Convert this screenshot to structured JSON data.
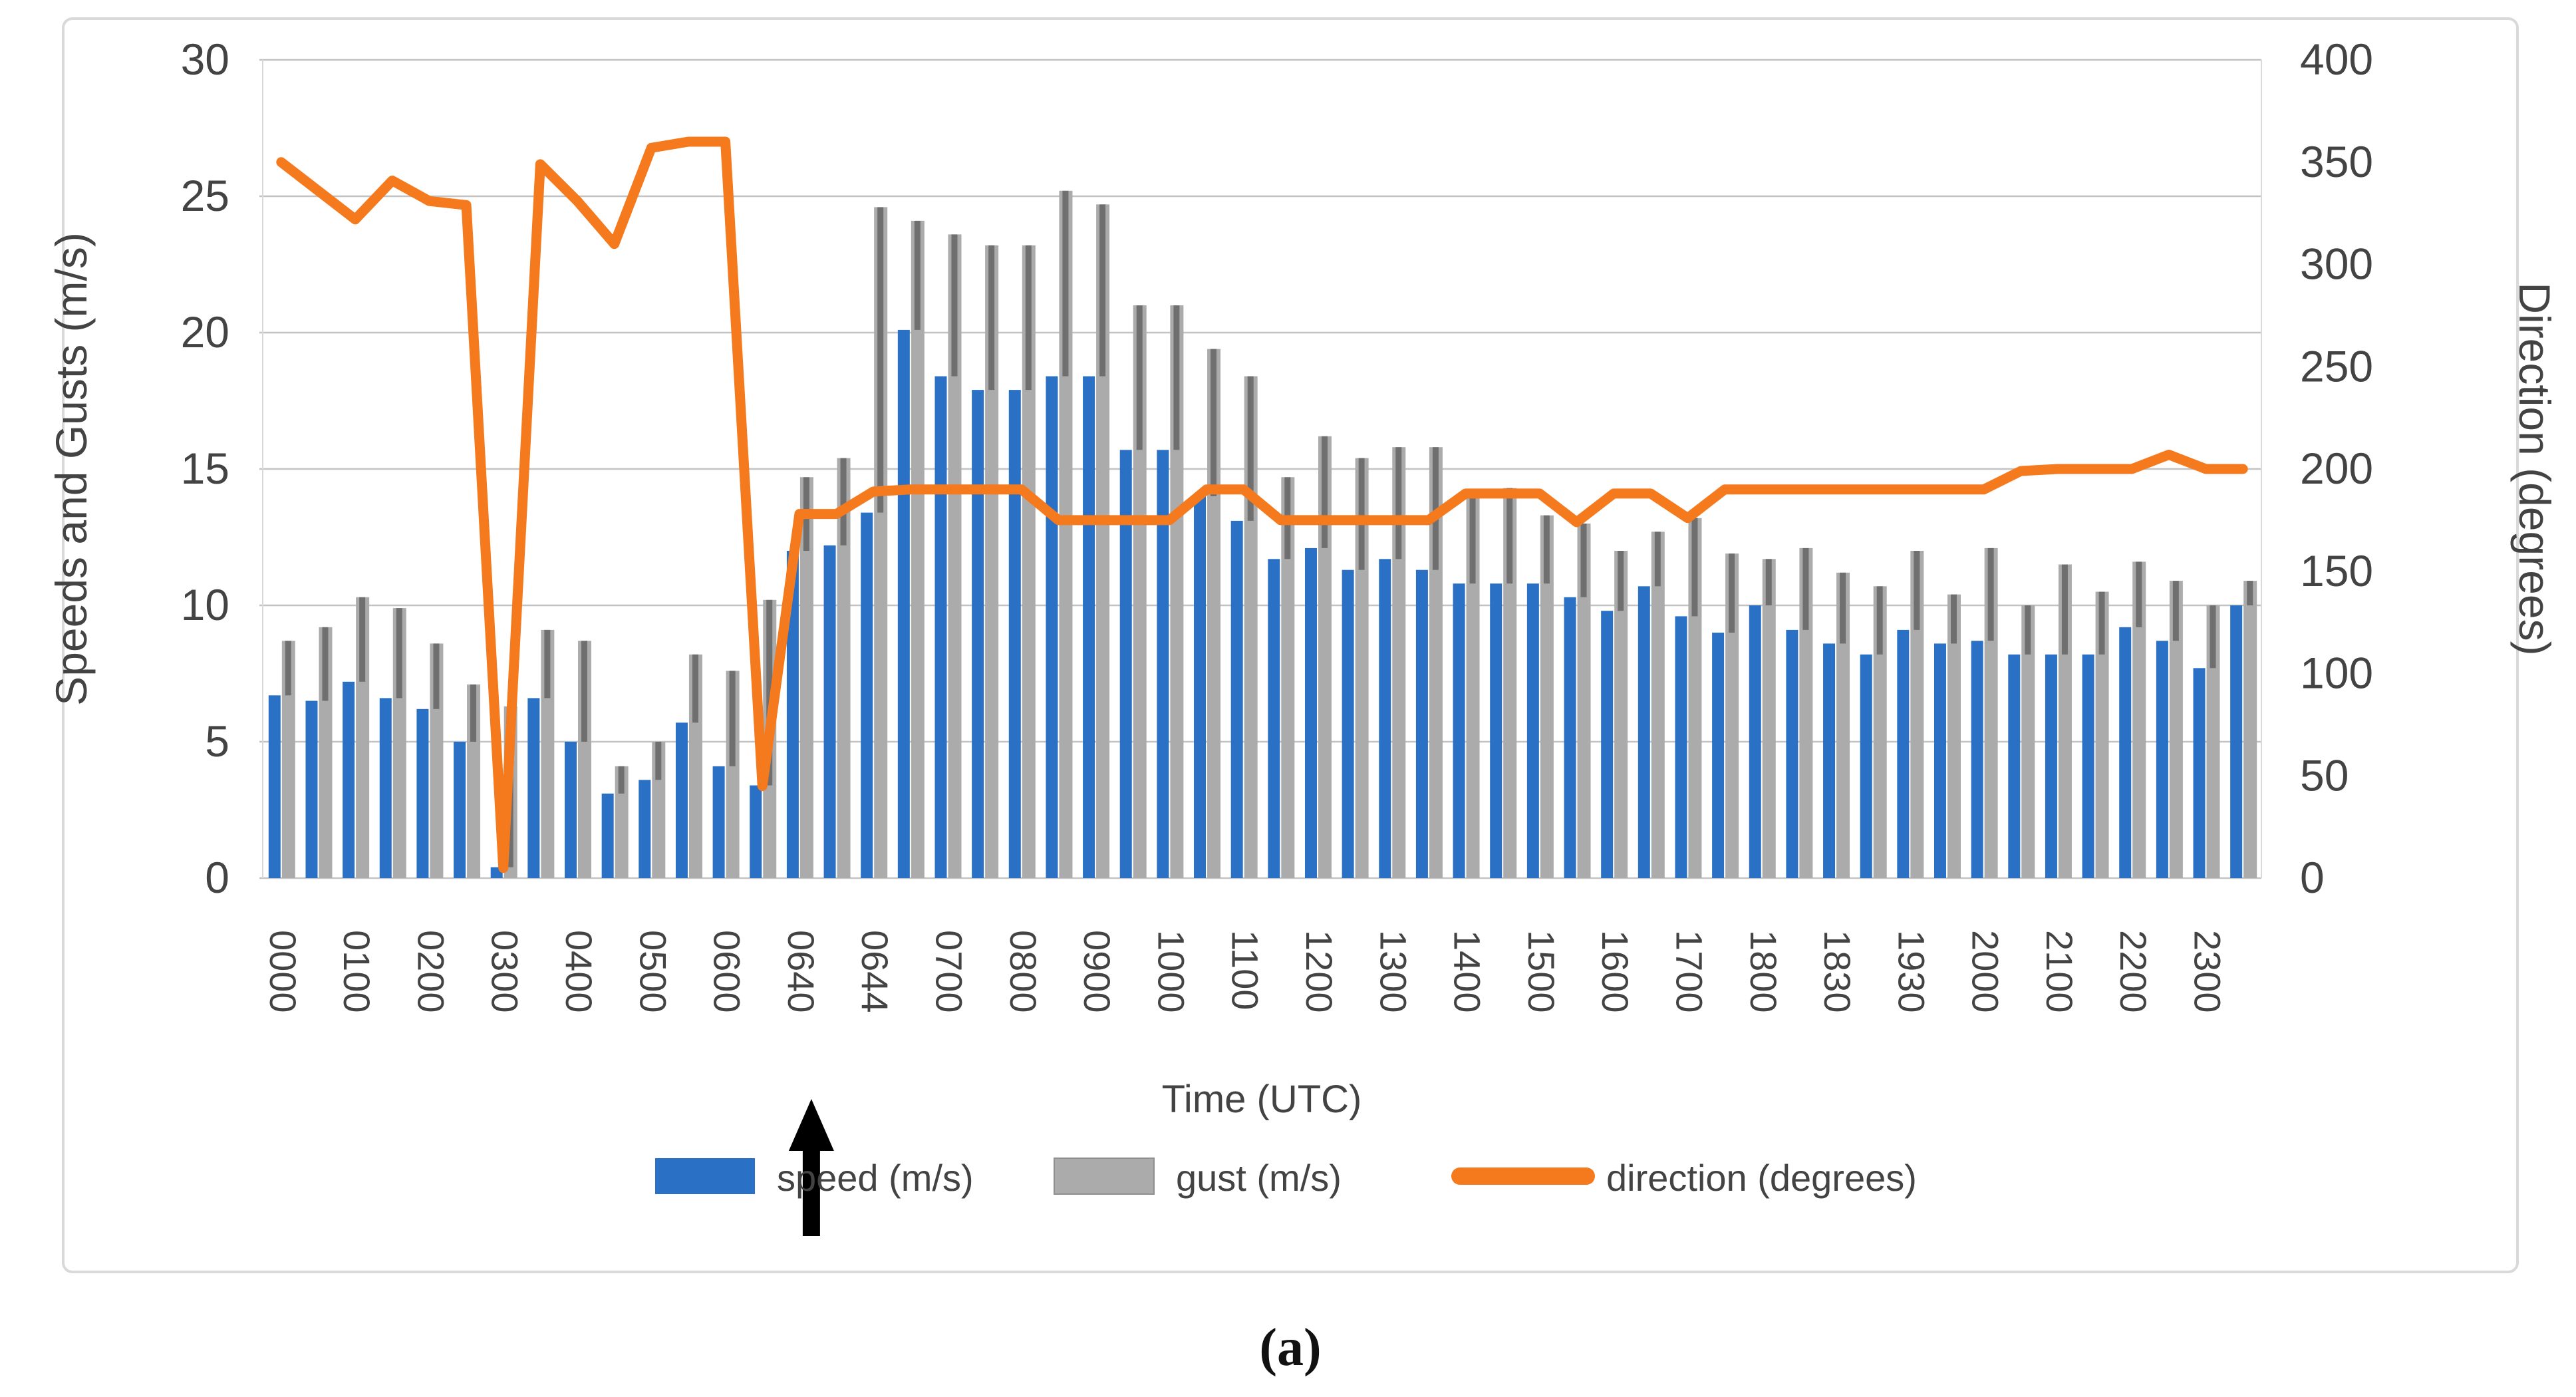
{
  "figure": {
    "caption": "(a)"
  },
  "colors": {
    "speed": "#2a71c6",
    "gust_light": "#ababab",
    "gust_dark": "#6f6f6f",
    "direction": "#f5791d",
    "grid": "#c3c3c3",
    "frame": "#d9d9d9",
    "text": "#434343",
    "arrow": "#000000"
  },
  "chart_data": {
    "type": "combo-bar-line",
    "title": "",
    "xlabel": "Time (UTC)",
    "grid": true,
    "legend_position": "bottom",
    "left_axis": {
      "label": "Speeds and Gusts (m/s)",
      "min": 0,
      "max": 30,
      "step": 5,
      "ticks": [
        "0",
        "5",
        "10",
        "15",
        "20",
        "25",
        "30"
      ]
    },
    "right_axis": {
      "label": "Direction (degrees)",
      "min": 0,
      "max": 400,
      "step": 50,
      "ticks": [
        "0",
        "50",
        "100",
        "150",
        "200",
        "250",
        "300",
        "350",
        "400"
      ]
    },
    "categories": [
      "0000",
      "",
      "0100",
      "",
      "0200",
      "",
      "0300",
      "",
      "0400",
      "",
      "0500",
      "",
      "0600",
      "",
      "0640",
      "",
      "0644",
      "",
      "0700",
      "",
      "0800",
      "",
      "0900",
      "",
      "1000",
      "",
      "1100",
      "",
      "1200",
      "",
      "1300",
      "",
      "1400",
      "",
      "1500",
      "",
      "1600",
      "",
      "1700",
      "",
      "1800",
      "",
      "1830",
      "",
      "1930",
      "",
      "2000",
      "",
      "2100",
      "",
      "2200",
      "",
      "2300",
      ""
    ],
    "series": [
      {
        "name": "speed (m/s)",
        "type": "bar",
        "color": "#2a71c6",
        "values": [
          6.7,
          6.5,
          7.2,
          6.6,
          6.2,
          5.0,
          0.4,
          6.6,
          5.0,
          3.1,
          3.6,
          5.7,
          4.1,
          3.4,
          12.0,
          12.2,
          13.4,
          20.1,
          18.4,
          17.9,
          17.9,
          18.4,
          18.4,
          15.7,
          15.7,
          14.0,
          13.1,
          11.7,
          12.1,
          11.3,
          11.7,
          11.3,
          10.8,
          10.8,
          10.8,
          10.3,
          9.8,
          10.7,
          9.6,
          9.0,
          10.0,
          9.1,
          8.6,
          8.2,
          9.1,
          8.6,
          8.7,
          8.2,
          8.2,
          8.2,
          9.2,
          8.7,
          7.7,
          10.0
        ]
      },
      {
        "name": "gust (m/s)",
        "type": "bar",
        "color": "#ababab",
        "color_dark": "#6f6f6f",
        "values": [
          8.7,
          9.2,
          10.3,
          9.9,
          8.6,
          7.1,
          6.3,
          9.1,
          8.7,
          4.1,
          5.0,
          8.2,
          7.6,
          10.2,
          14.7,
          15.4,
          24.6,
          24.1,
          23.6,
          23.2,
          23.2,
          25.2,
          24.7,
          21.0,
          21.0,
          19.4,
          18.4,
          14.7,
          16.2,
          15.4,
          15.8,
          15.8,
          14.0,
          14.3,
          13.3,
          13.0,
          12.0,
          12.7,
          13.2,
          11.9,
          11.7,
          12.1,
          11.2,
          10.7,
          12.0,
          10.4,
          12.1,
          10.0,
          11.5,
          10.5,
          11.6,
          10.9,
          10.0,
          10.9
        ]
      },
      {
        "name": "direction (degrees)",
        "type": "line",
        "color": "#f5791d",
        "values": [
          350,
          336,
          322,
          341,
          331,
          329,
          5,
          349,
          331,
          310,
          357,
          360,
          360,
          45,
          178,
          178,
          189,
          190,
          190,
          190,
          190,
          175,
          175,
          175,
          175,
          190,
          190,
          175,
          175,
          175,
          175,
          175,
          188,
          188,
          188,
          174,
          188,
          188,
          176,
          190,
          190,
          190,
          190,
          190,
          190,
          190,
          190,
          199,
          200,
          200,
          200,
          207,
          200,
          200
        ]
      }
    ],
    "annotations": [
      {
        "type": "arrow-up",
        "category": "0640",
        "category_index": 14
      }
    ]
  }
}
